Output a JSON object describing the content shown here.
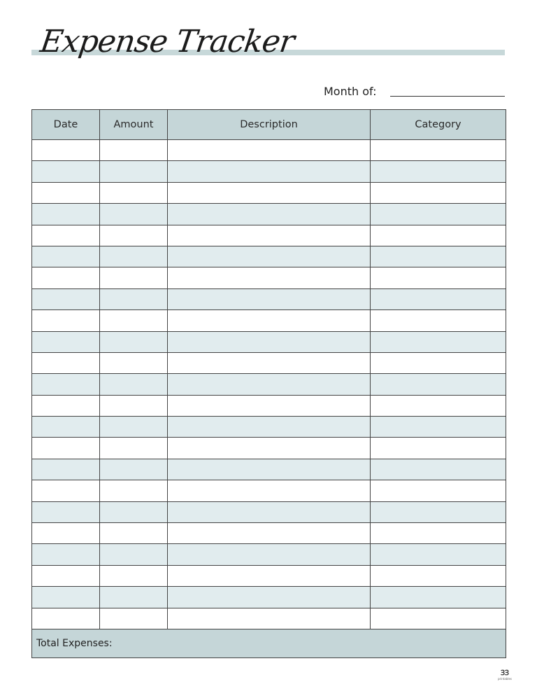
{
  "title": "Expense Tracker",
  "month_label": "Month of:",
  "table": {
    "headers": [
      "Date",
      "Amount",
      "Description",
      "Category"
    ],
    "row_count": 23,
    "total_label": "Total Expenses:"
  },
  "colors": {
    "header": "#c5d6d8",
    "alt_row": "#e1ecee",
    "accent_band": "#c7d8d9"
  },
  "logo": {
    "text": "printables"
  }
}
